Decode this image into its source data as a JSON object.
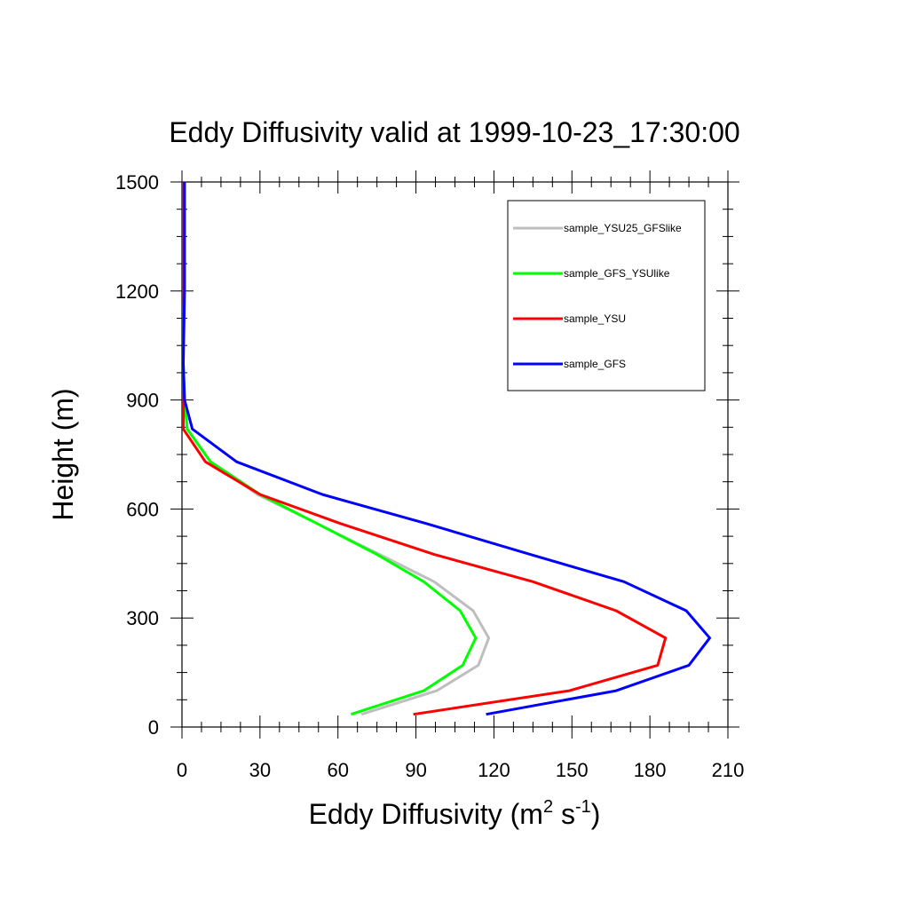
{
  "chart_data": {
    "type": "line",
    "title": "Eddy Diffusivity valid at 1999-10-23_17:30:00",
    "xlabel": {
      "base": "Eddy Diffusivity (m",
      "sup1": "2",
      "mid": " s",
      "sup2": "-1",
      "end": ")"
    },
    "ylabel": "Height (m)",
    "xlim": [
      0,
      210
    ],
    "ylim": [
      0,
      1500
    ],
    "xticks": [
      "0",
      "30",
      "60",
      "90",
      "120",
      "150",
      "180",
      "210"
    ],
    "yticks": [
      "0",
      "300",
      "600",
      "900",
      "1200",
      "1500"
    ],
    "legend_position": "top-right",
    "series": [
      {
        "name": "sample_YSU25_GFSlike",
        "color": "#bebebe",
        "points": [
          [
            69,
            35
          ],
          [
            98,
            100
          ],
          [
            114,
            170
          ],
          [
            118,
            245
          ],
          [
            112,
            320
          ],
          [
            97,
            400
          ],
          [
            76,
            475
          ],
          [
            52,
            560
          ],
          [
            29,
            640
          ],
          [
            11,
            730
          ],
          [
            2,
            820
          ],
          [
            1,
            900
          ],
          [
            0.5,
            1000
          ],
          [
            0.5,
            1200
          ],
          [
            0.5,
            1500
          ]
        ]
      },
      {
        "name": "sample_GFS_YSUlike",
        "color": "#00ff00",
        "points": [
          [
            65,
            35
          ],
          [
            93,
            100
          ],
          [
            108,
            170
          ],
          [
            113,
            245
          ],
          [
            107,
            320
          ],
          [
            93,
            400
          ],
          [
            75,
            475
          ],
          [
            52,
            560
          ],
          [
            30,
            640
          ],
          [
            11,
            730
          ],
          [
            2,
            820
          ],
          [
            1,
            900
          ],
          [
            0.5,
            1000
          ],
          [
            0.5,
            1200
          ],
          [
            0.5,
            1500
          ]
        ]
      },
      {
        "name": "sample_YSU",
        "color": "#ff0000",
        "points": [
          [
            89,
            35
          ],
          [
            149,
            100
          ],
          [
            183,
            170
          ],
          [
            186,
            245
          ],
          [
            167,
            320
          ],
          [
            135,
            400
          ],
          [
            97,
            475
          ],
          [
            61,
            560
          ],
          [
            30,
            640
          ],
          [
            9,
            730
          ],
          [
            0.5,
            820
          ],
          [
            0.5,
            900
          ],
          [
            0.5,
            1000
          ],
          [
            0.5,
            1200
          ],
          [
            0.5,
            1500
          ]
        ]
      },
      {
        "name": "sample_GFS",
        "color": "#0000ff",
        "points": [
          [
            117,
            35
          ],
          [
            167,
            100
          ],
          [
            195,
            170
          ],
          [
            203,
            245
          ],
          [
            194,
            320
          ],
          [
            170,
            400
          ],
          [
            134,
            475
          ],
          [
            94,
            560
          ],
          [
            54,
            640
          ],
          [
            21,
            730
          ],
          [
            4,
            820
          ],
          [
            1,
            900
          ],
          [
            0.5,
            1000
          ],
          [
            1,
            1200
          ],
          [
            1,
            1500
          ]
        ]
      }
    ]
  }
}
